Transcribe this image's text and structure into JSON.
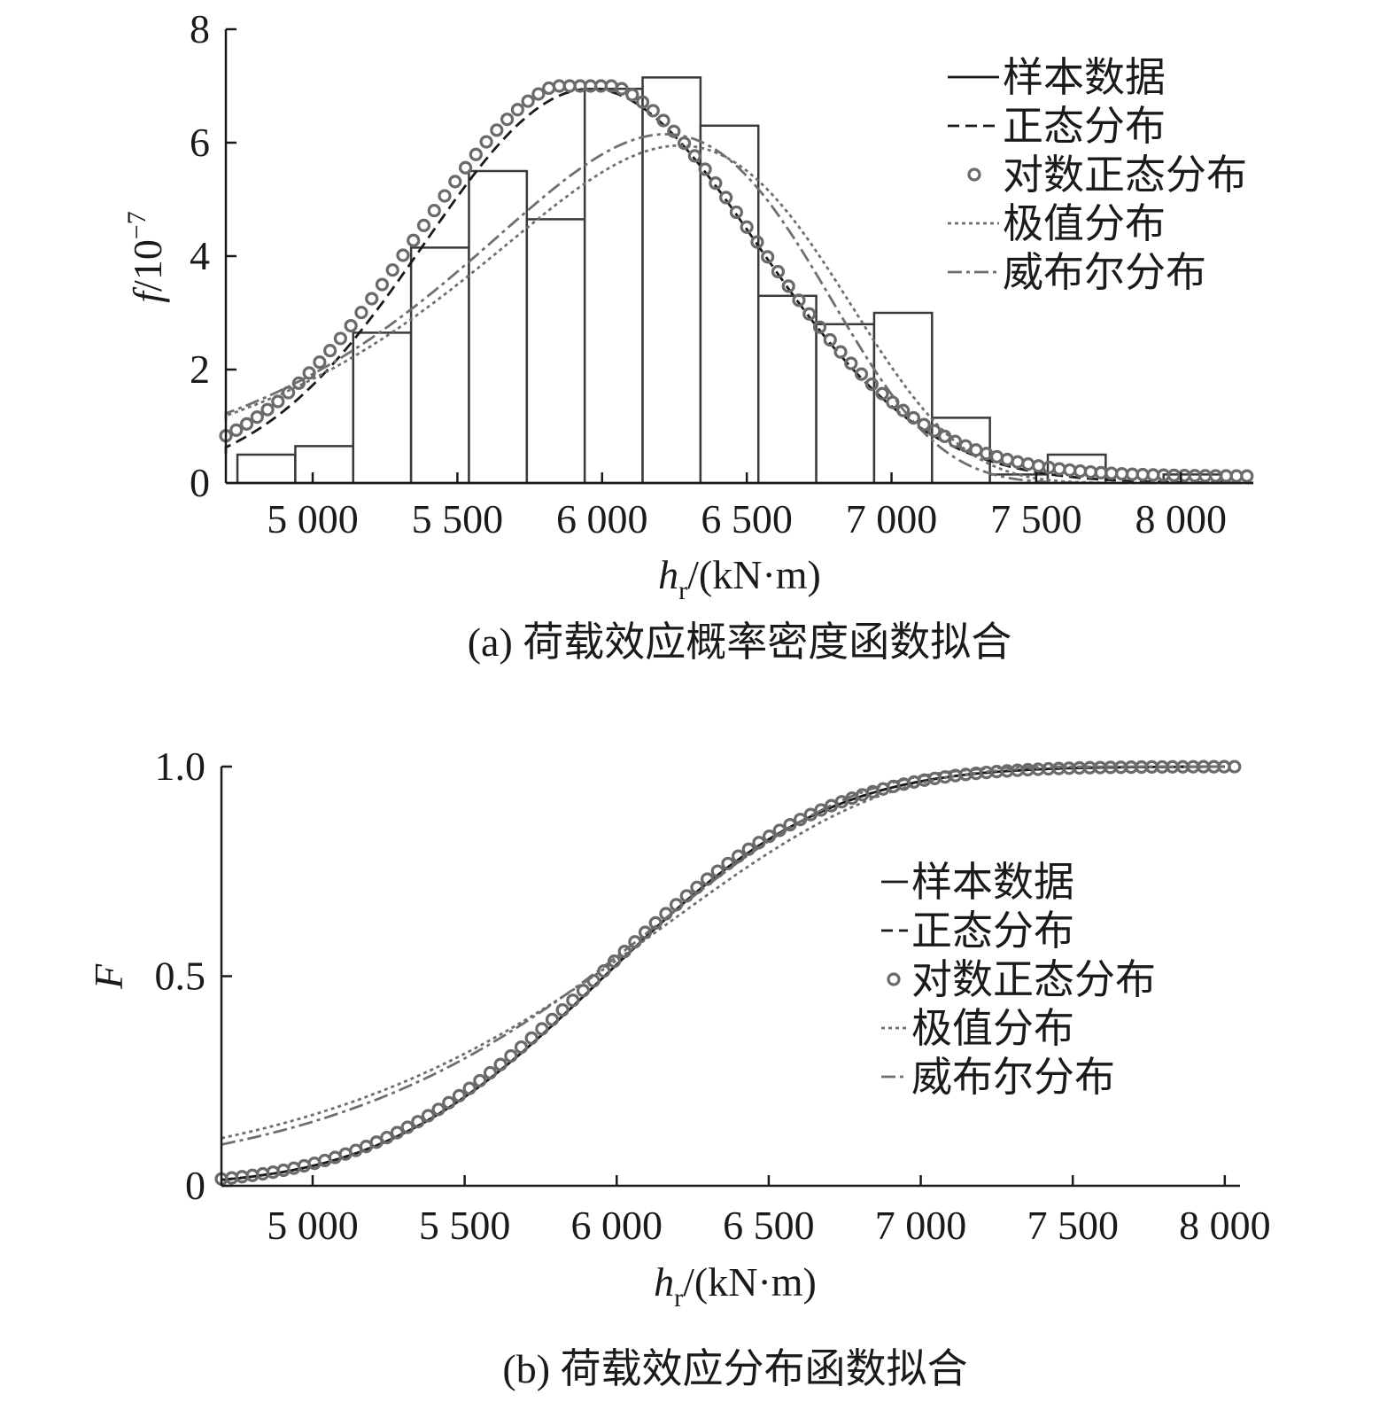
{
  "chart_data": [
    {
      "type": "histogram+line",
      "caption": "(a) 荷载效应概率密度函数拟合",
      "xlabel_italic": "h",
      "xlabel_sub": "r",
      "xlabel_rest": "/(kN·m)",
      "ylabel_italic": "f",
      "ylabel_rest": "/10",
      "ylabel_sup": "−7",
      "xlim": [
        4700,
        8250
      ],
      "ylim": [
        0,
        8
      ],
      "x_ticks": [
        5000,
        5500,
        6000,
        6500,
        7000,
        7500,
        8000
      ],
      "x_tick_labels": [
        "5 000",
        "5 500",
        "6 000",
        "6 500",
        "7 000",
        "7 500",
        "8 000"
      ],
      "y_ticks": [
        0,
        2,
        4,
        6,
        8
      ],
      "y_tick_labels": [
        "0",
        "2",
        "4",
        "6",
        "8"
      ],
      "histogram_bins": [
        [
          4740,
          4940,
          0.5
        ],
        [
          4940,
          5140,
          0.65
        ],
        [
          5140,
          5340,
          2.65
        ],
        [
          5340,
          5540,
          4.15
        ],
        [
          5540,
          5740,
          5.5
        ],
        [
          5740,
          5940,
          4.65
        ],
        [
          5940,
          6140,
          6.95
        ],
        [
          6140,
          6340,
          7.15
        ],
        [
          6340,
          6540,
          6.3
        ],
        [
          6540,
          6740,
          3.3
        ],
        [
          6740,
          6940,
          2.8
        ],
        [
          6940,
          7140,
          3.0
        ],
        [
          7140,
          7340,
          1.15
        ],
        [
          7340,
          7540,
          0.15
        ],
        [
          7540,
          7740,
          0.5
        ],
        [
          7740,
          7940,
          0.0
        ],
        [
          7940,
          8140,
          0.15
        ]
      ],
      "series": [
        {
          "name": "样本数据",
          "style": "solid"
        },
        {
          "name": "正态分布",
          "style": "dashed",
          "mean": 5960,
          "sd": 575
        },
        {
          "name": "对数正态分布",
          "style": "circles",
          "mean": 5940,
          "sd": 580
        },
        {
          "name": "极值分布",
          "style": "dotted",
          "mode": 6270,
          "scale": 620
        },
        {
          "name": "威布尔分布",
          "style": "dashdot",
          "mode": 6220,
          "scale": 600
        }
      ],
      "legend_position": "top-right"
    },
    {
      "type": "line",
      "caption": "(b) 荷载效应分布函数拟合",
      "xlabel_italic": "h",
      "xlabel_sub": "r",
      "xlabel_rest": "/(kN·m)",
      "ylabel_italic": "F",
      "xlim": [
        4700,
        8050
      ],
      "ylim": [
        0,
        1.0
      ],
      "x_ticks": [
        5000,
        5500,
        6000,
        6500,
        7000,
        7500,
        8000
      ],
      "x_tick_labels": [
        "5 000",
        "5 500",
        "6 000",
        "6 500",
        "7 000",
        "7 500",
        "8 000"
      ],
      "y_ticks": [
        0,
        0.5,
        1.0
      ],
      "y_tick_labels": [
        "0",
        "0.5",
        "1.0"
      ],
      "series": [
        {
          "name": "样本数据",
          "style": "solid"
        },
        {
          "name": "正态分布",
          "style": "dashed"
        },
        {
          "name": "对数正态分布",
          "style": "circles"
        },
        {
          "name": "极值分布",
          "style": "dotted"
        },
        {
          "name": "威布尔分布",
          "style": "dashdot"
        }
      ],
      "legend_position": "right"
    }
  ]
}
